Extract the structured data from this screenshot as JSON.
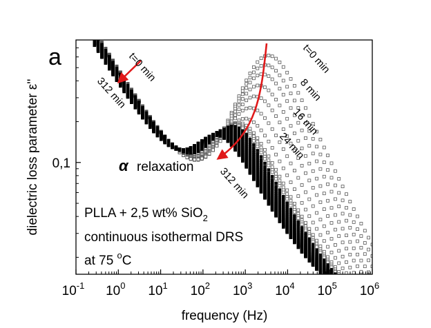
{
  "chart_data": {
    "type": "scatter",
    "panel_label": "a",
    "xlabel": "frequency (Hz)",
    "ylabel": "dielectric loss parameter ε''",
    "x_scale": "log",
    "y_scale": "log",
    "xlim": [
      0.1,
      1000000
    ],
    "ylim": [
      0.015,
      0.8
    ],
    "x_ticks": [
      {
        "value": 0.1,
        "base": "10",
        "exp": "-1"
      },
      {
        "value": 1,
        "base": "10",
        "exp": "0"
      },
      {
        "value": 10,
        "base": "10",
        "exp": "1"
      },
      {
        "value": 100,
        "base": "10",
        "exp": "2"
      },
      {
        "value": 1000,
        "base": "10",
        "exp": "3"
      },
      {
        "value": 10000,
        "base": "10",
        "exp": "4"
      },
      {
        "value": 100000,
        "base": "10",
        "exp": "5"
      },
      {
        "value": 1000000,
        "base": "10",
        "exp": "6"
      }
    ],
    "y_ticks": [
      {
        "value": 0.1,
        "label": "0,1"
      }
    ],
    "grid": false,
    "relaxation_label": "relaxation",
    "relaxation_symbol": "α",
    "curve_labels": [
      {
        "text": "t=0 min",
        "near": "conductivity, upper"
      },
      {
        "text": "312 min",
        "near": "conductivity, lower"
      },
      {
        "text": "t=0 min",
        "near": "peak"
      },
      {
        "text": "8 min",
        "near": "peak"
      },
      {
        "text": "16 min",
        "near": "peak"
      },
      {
        "text": "24 min",
        "near": "peak"
      },
      {
        "text": "312 min",
        "near": "peak"
      }
    ],
    "sample_text": {
      "line1_prefix": "PLLA + 2,5 wt% SiO",
      "line1_subscript": "2",
      "line2": "continuous isothermal DRS",
      "line3_prefix": "at 75 ",
      "line3_superscript": "o",
      "line3_suffix": "C"
    },
    "series": [
      {
        "time_min": 0,
        "peak_freq": 3000,
        "peak_eps": 0.56
      },
      {
        "time_min": 8,
        "peak_freq": 2200,
        "peak_eps": 0.4
      },
      {
        "time_min": 16,
        "peak_freq": 1500,
        "peak_eps": 0.265
      },
      {
        "time_min": 24,
        "peak_freq": 900,
        "peak_eps": 0.17
      },
      {
        "time_min": 312,
        "peak_freq": 200,
        "peak_eps": 0.108
      }
    ],
    "colors": {
      "data": "#000000",
      "arrow": "#e0191a",
      "axis": "#000000"
    }
  }
}
